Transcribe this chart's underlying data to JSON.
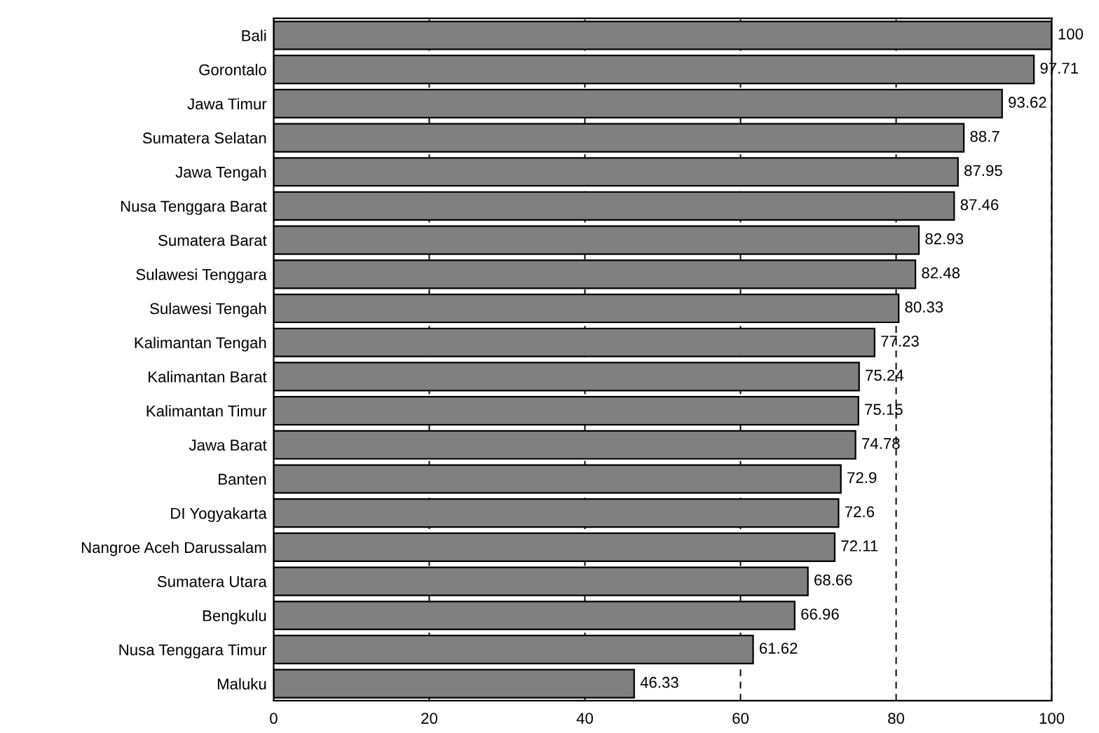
{
  "chart_data": {
    "type": "bar",
    "orientation": "horizontal",
    "categories": [
      "Bali",
      "Gorontalo",
      "Jawa Timur",
      "Sumatera Selatan",
      "Jawa Tengah",
      "Nusa Tenggara Barat",
      "Sumatera Barat",
      "Sulawesi Tenggara",
      "Sulawesi Tengah",
      "Kalimantan Tengah",
      "Kalimantan Barat",
      "Kalimantan Timur",
      "Jawa Barat",
      "Banten",
      "DI Yogyakarta",
      "Nangroe Aceh Darussalam",
      "Sumatera Utara",
      "Bengkulu",
      "Nusa Tenggara Timur",
      "Maluku"
    ],
    "values": [
      100,
      97.71,
      93.62,
      88.7,
      87.95,
      87.46,
      82.93,
      82.48,
      80.33,
      77.23,
      75.24,
      75.15,
      74.78,
      72.9,
      72.6,
      72.11,
      68.66,
      66.96,
      61.62,
      46.33
    ],
    "color": "#808080",
    "xlim": [
      0,
      100
    ],
    "xticks": [
      0,
      20,
      40,
      60,
      80,
      100
    ],
    "grid": "x",
    "data_labels": true
  }
}
